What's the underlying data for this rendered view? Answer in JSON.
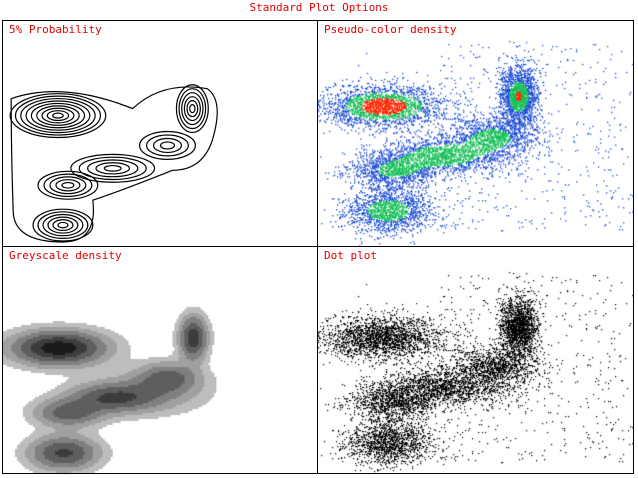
{
  "window": {
    "title": "Standard Plot Options"
  },
  "panels": [
    {
      "label": "5% Probability",
      "kind": "contour"
    },
    {
      "label": "Pseudo-color density",
      "kind": "pseudocolor"
    },
    {
      "label": "Greyscale density",
      "kind": "greyscale"
    },
    {
      "label": "Dot plot",
      "kind": "dot"
    }
  ],
  "colors": {
    "label_text": "#e00000",
    "frame": "#000000",
    "pseudocolor_low": "#1f4fd8",
    "pseudocolor_mid": "#19c15a",
    "pseudocolor_high": "#ff2a00"
  }
}
